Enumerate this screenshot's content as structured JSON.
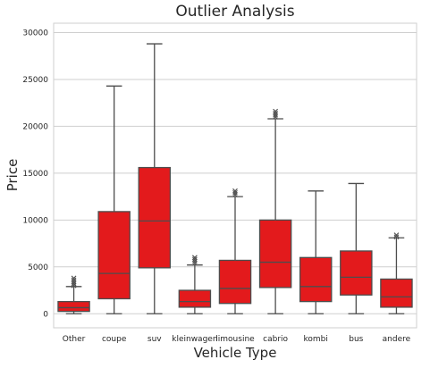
{
  "chart_data": {
    "type": "boxplot",
    "title": "Outlier Analysis",
    "xlabel": "Vehicle Type",
    "ylabel": "Price",
    "ylim": [
      -1500,
      31000
    ],
    "yticks": [
      0,
      5000,
      10000,
      15000,
      20000,
      25000,
      30000
    ],
    "ytick_labels": [
      "0",
      "5000",
      "10000",
      "15000",
      "20000",
      "25000",
      "30000"
    ],
    "grid": true,
    "box_color": "#e31a1c",
    "line_color": "#4d4d4d",
    "categories": [
      "Other",
      "coupe",
      "suv",
      "kleinwagen",
      "limousine",
      "cabrio",
      "kombi",
      "bus",
      "andere"
    ],
    "boxes": [
      {
        "whisker_low": 0,
        "q1": 250,
        "median": 650,
        "q3": 1300,
        "whisker_high": 2900,
        "outliers": [
          3000,
          3200,
          3400,
          3600,
          3800
        ]
      },
      {
        "whisker_low": 0,
        "q1": 1600,
        "median": 4300,
        "q3": 10900,
        "whisker_high": 24300,
        "outliers": []
      },
      {
        "whisker_low": 0,
        "q1": 4900,
        "median": 9900,
        "q3": 15600,
        "whisker_high": 28800,
        "outliers": []
      },
      {
        "whisker_low": 0,
        "q1": 700,
        "median": 1300,
        "q3": 2500,
        "whisker_high": 5200,
        "outliers": [
          5400,
          5600,
          5800,
          6000
        ]
      },
      {
        "whisker_low": 0,
        "q1": 1100,
        "median": 2700,
        "q3": 5700,
        "whisker_high": 12500,
        "outliers": [
          12700,
          12900,
          13100
        ]
      },
      {
        "whisker_low": 0,
        "q1": 2800,
        "median": 5500,
        "q3": 10000,
        "whisker_high": 20800,
        "outliers": [
          21000,
          21200,
          21400,
          21600
        ]
      },
      {
        "whisker_low": 0,
        "q1": 1300,
        "median": 2900,
        "q3": 6000,
        "whisker_high": 13100,
        "outliers": []
      },
      {
        "whisker_low": 0,
        "q1": 2000,
        "median": 3900,
        "q3": 6700,
        "whisker_high": 13900,
        "outliers": []
      },
      {
        "whisker_low": 0,
        "q1": 700,
        "median": 1800,
        "q3": 3700,
        "whisker_high": 8100,
        "outliers": [
          8200,
          8400
        ]
      }
    ]
  }
}
